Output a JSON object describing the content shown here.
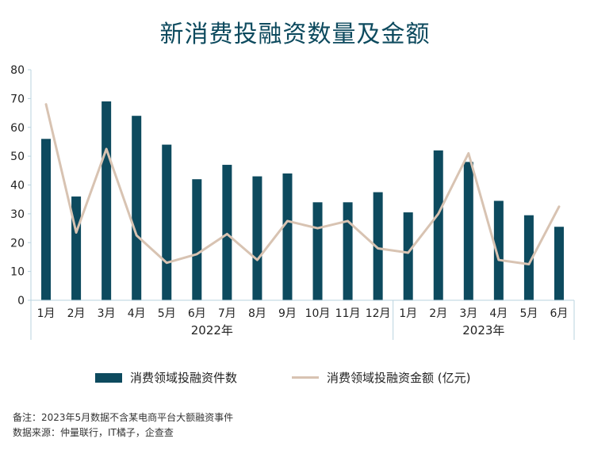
{
  "title": "新消费投融资数量及金额",
  "colors": {
    "bar": "#0d4a5e",
    "line": "#d8c3b2",
    "axis": "#b9d3df",
    "title": "#0d4a5e"
  },
  "chart_data": {
    "type": "bar+line",
    "categories": [
      "1月",
      "2月",
      "3月",
      "4月",
      "5月",
      "6月",
      "7月",
      "8月",
      "9月",
      "10月",
      "11月",
      "12月",
      "1月",
      "2月",
      "3月",
      "4月",
      "5月",
      "6月"
    ],
    "groups": [
      {
        "label": "2022年",
        "start": 0,
        "end": 11
      },
      {
        "label": "2023年",
        "start": 12,
        "end": 17
      }
    ],
    "ylim": [
      0,
      80
    ],
    "yticks": [
      0,
      10,
      20,
      30,
      40,
      50,
      60,
      70,
      80
    ],
    "series": [
      {
        "name": "消费领域投融资件数",
        "kind": "bar",
        "values": [
          56,
          36,
          69,
          64,
          54,
          42,
          47,
          43,
          44,
          34,
          34,
          37.5,
          30.5,
          52,
          48,
          34.5,
          29.5,
          25.5
        ]
      },
      {
        "name": "消费领域投融资金额 (亿元)",
        "kind": "line",
        "values": [
          68,
          23.5,
          52.5,
          22.5,
          13,
          16,
          23,
          14,
          27.5,
          25,
          27.5,
          18,
          16.5,
          30,
          51,
          14,
          12.5,
          32.5
        ]
      }
    ],
    "legend": "bottom"
  },
  "legend": {
    "bar_label": "消费领域投融资件数",
    "line_label": "消费领域投融资金额 (亿元)"
  },
  "notes": {
    "note": "备注：2023年5月数据不含某电商平台大额融资事件",
    "source": "数据来源：仲量联行，IT橘子，企查查"
  }
}
